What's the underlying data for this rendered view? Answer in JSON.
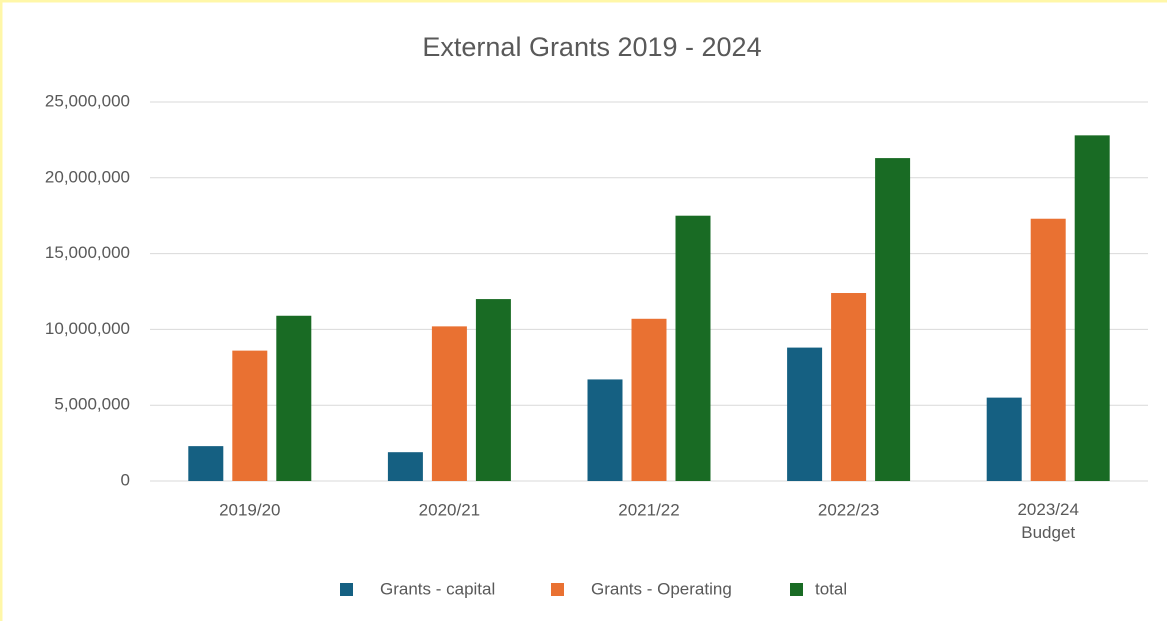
{
  "chart_data": {
    "type": "bar",
    "title": "External Grants 2019 - 2024",
    "categories": [
      "2019/20",
      "2020/21",
      "2021/22",
      "2022/23",
      "2023/24\nBudget"
    ],
    "series": [
      {
        "name": "Grants - capital",
        "color": "#156082",
        "values": [
          2300000,
          1900000,
          6700000,
          8800000,
          5500000
        ]
      },
      {
        "name": "Grants - Operating",
        "color": "#e97132",
        "values": [
          8600000,
          10200000,
          10700000,
          12400000,
          17300000
        ]
      },
      {
        "name": "total",
        "color": "#196b24",
        "values": [
          10900000,
          12000000,
          17500000,
          21300000,
          22800000
        ]
      }
    ],
    "ylim": [
      0,
      25000000
    ],
    "yticks": [
      0,
      {
        "value": 5000000,
        "label": "5,000,000"
      },
      {
        "value": 10000000,
        "label": "10,000,000"
      },
      {
        "value": 15000000,
        "label": "15,000,000"
      },
      {
        "value": 20000000,
        "label": "20,000,000"
      },
      {
        "value": 25000000,
        "label": "25,000,000"
      }
    ],
    "grid": true,
    "legend": "bottom"
  }
}
